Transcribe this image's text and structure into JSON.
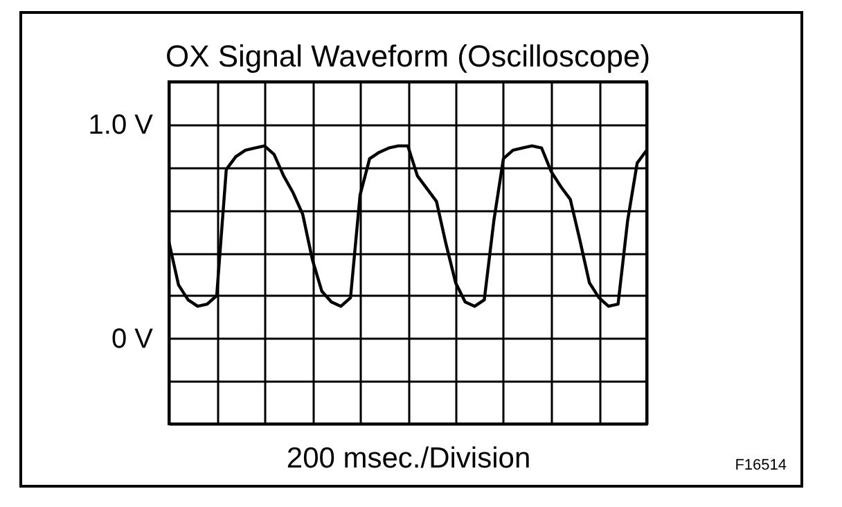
{
  "chart_data": {
    "type": "line",
    "title": "OX Signal Waveform (Oscilloscope)",
    "xlabel": "200 msec./Division",
    "annotations": [
      "F16514"
    ],
    "categories": [
      null,
      null,
      null,
      null,
      null,
      null,
      null,
      null,
      null,
      null,
      null,
      null,
      null,
      null,
      null,
      null,
      null,
      null,
      null,
      null,
      null,
      null,
      null,
      null,
      null,
      null,
      null,
      null,
      null,
      null,
      null,
      null,
      null,
      null,
      null,
      null,
      null,
      null,
      null,
      null,
      null,
      null,
      null,
      null,
      null,
      null,
      null,
      null,
      null,
      null,
      null
    ],
    "ylim": [
      -0.4,
      1.2
    ],
    "yticks": [
      {
        "value": -0.4,
        "label": null
      },
      {
        "value": -0.2,
        "label": null
      },
      {
        "value": 0,
        "label": "0 V"
      },
      {
        "value": 0.2,
        "label": null
      },
      {
        "value": 0.4,
        "label": null
      },
      {
        "value": 0.6,
        "label": null
      },
      {
        "value": 0.8,
        "label": null
      },
      {
        "value": 1.0,
        "label": "1.0 V"
      },
      {
        "value": 1.2,
        "label": null
      }
    ],
    "grid": true,
    "series": [
      {
        "color": "#000000",
        "values": [
          0.45,
          0.25,
          0.18,
          0.15,
          0.16,
          0.2,
          0.79,
          0.85,
          0.88,
          0.89,
          0.9,
          0.86,
          0.76,
          0.68,
          0.58,
          0.37,
          0.22,
          0.17,
          0.15,
          0.19,
          0.67,
          0.84,
          0.87,
          0.89,
          0.9,
          0.9,
          0.76,
          0.7,
          0.64,
          0.44,
          0.26,
          0.17,
          0.15,
          0.18,
          0.55,
          0.84,
          0.88,
          0.89,
          0.9,
          0.89,
          0.78,
          0.71,
          0.65,
          0.46,
          0.26,
          0.19,
          0.15,
          0.16,
          0.55,
          0.82,
          0.88
        ]
      }
    ]
  }
}
